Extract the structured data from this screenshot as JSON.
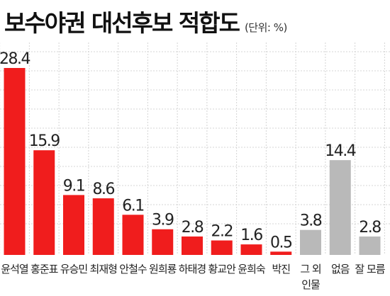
{
  "title": "보수야권 대선후보 적합도",
  "unit_note": "(단위: %)",
  "colors": {
    "primary": "#f01d1d",
    "secondary": "#b9b9b9",
    "grid": "#d4d4d4"
  },
  "chart_data": {
    "type": "bar",
    "title": "보수야권 대선후보 적합도",
    "unit": "%",
    "categories": [
      "윤석열",
      "홍준표",
      "유승민",
      "최재형",
      "안철수",
      "원희룡",
      "하태경",
      "황교안",
      "윤희숙",
      "박진",
      "그 외 인물",
      "없음",
      "잘 모름"
    ],
    "category_lines": [
      [
        "윤석열"
      ],
      [
        "홍준표"
      ],
      [
        "유승민"
      ],
      [
        "최재형"
      ],
      [
        "안철수"
      ],
      [
        "원희룡"
      ],
      [
        "하태경"
      ],
      [
        "황교안"
      ],
      [
        "윤희숙"
      ],
      [
        "박진"
      ],
      [
        "그 외",
        "인물"
      ],
      [
        "없음"
      ],
      [
        "잘 모름"
      ]
    ],
    "values": [
      28.4,
      15.9,
      9.1,
      8.6,
      6.1,
      3.9,
      2.8,
      2.2,
      1.6,
      0.5,
      3.8,
      14.4,
      2.8
    ],
    "value_labels": [
      "28.4",
      "15.9",
      "9.1",
      "8.6",
      "6.1",
      "3.9",
      "2.8",
      "2.2",
      "1.6",
      "0.5",
      "3.8",
      "14.4",
      "2.8"
    ],
    "bar_colors": [
      "#f01d1d",
      "#f01d1d",
      "#f01d1d",
      "#f01d1d",
      "#f01d1d",
      "#f01d1d",
      "#f01d1d",
      "#f01d1d",
      "#f01d1d",
      "#f01d1d",
      "#b9b9b9",
      "#b9b9b9",
      "#b9b9b9"
    ],
    "ylim": [
      0,
      28.4
    ],
    "grid": true,
    "legend": "none"
  }
}
